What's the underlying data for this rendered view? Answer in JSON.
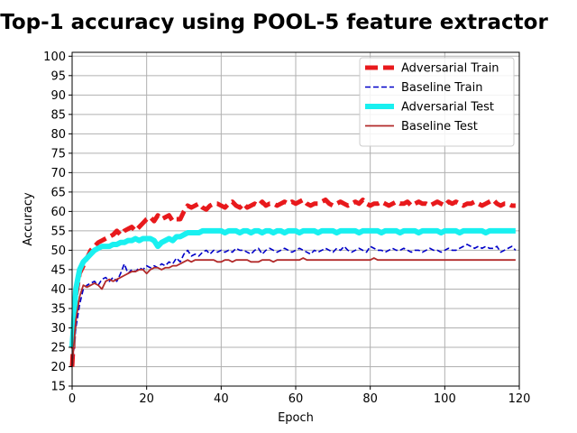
{
  "chart_data": {
    "type": "line",
    "title": "Top-1 accuracy using POOL-5 feature extractor",
    "xlabel": "Epoch",
    "ylabel": "Accuracy",
    "xlim": [
      0,
      120
    ],
    "ylim": [
      15,
      101
    ],
    "xticks": [
      0,
      20,
      40,
      60,
      80,
      100,
      120
    ],
    "yticks": [
      15,
      20,
      25,
      30,
      35,
      40,
      45,
      50,
      55,
      60,
      65,
      70,
      75,
      80,
      85,
      90,
      95,
      100
    ],
    "grid": true,
    "legend_position": "top-right",
    "series": [
      {
        "name": "Adversarial Train",
        "color": "#e8191c",
        "style": "thick-dashed",
        "x": [
          0,
          1,
          2,
          3,
          4,
          5,
          6,
          7,
          8,
          9,
          10,
          11,
          12,
          13,
          14,
          15,
          16,
          17,
          18,
          19,
          20,
          21,
          22,
          23,
          24,
          25,
          26,
          27,
          28,
          29,
          30,
          31,
          32,
          33,
          34,
          35,
          36,
          37,
          38,
          39,
          40,
          41,
          42,
          43,
          44,
          45,
          46,
          47,
          48,
          49,
          50,
          51,
          52,
          53,
          54,
          55,
          56,
          57,
          58,
          59,
          60,
          61,
          62,
          63,
          64,
          65,
          66,
          67,
          68,
          69,
          70,
          71,
          72,
          73,
          74,
          75,
          76,
          77,
          78,
          79,
          80,
          81,
          82,
          83,
          84,
          85,
          86,
          87,
          88,
          89,
          90,
          91,
          92,
          93,
          94,
          95,
          96,
          97,
          98,
          99,
          100,
          101,
          102,
          103,
          104,
          105,
          106,
          107,
          108,
          109,
          110,
          111,
          112,
          113,
          114,
          115,
          116,
          117,
          118,
          119
        ],
        "values": [
          20,
          38,
          44,
          46,
          48,
          50,
          51,
          52,
          52.5,
          53,
          53.5,
          54,
          55,
          54,
          55,
          55.5,
          56,
          55,
          56,
          57,
          58,
          58.5,
          57.5,
          59,
          58,
          58.5,
          59,
          57.5,
          58,
          58,
          60,
          61.5,
          61,
          61.5,
          62,
          61,
          60.5,
          61.5,
          62,
          62,
          61.5,
          61,
          62,
          62.5,
          61.5,
          61,
          62,
          61,
          61.5,
          62,
          61.5,
          62.5,
          61.5,
          62,
          62,
          61.5,
          62,
          62.5,
          62,
          62.5,
          62,
          62.5,
          63,
          62,
          61.5,
          62,
          62,
          62.5,
          63,
          62,
          61.5,
          62,
          62.5,
          62,
          61.5,
          62,
          62.5,
          62,
          63,
          62,
          61.5,
          62,
          62,
          62.5,
          62,
          61.5,
          62,
          62.5,
          62,
          62,
          62.5,
          61.5,
          62,
          62.5,
          62,
          62,
          61.5,
          62,
          62.5,
          62,
          61.5,
          62.5,
          62,
          62.5,
          62,
          61.5,
          62,
          62,
          62.5,
          62,
          61.5,
          62,
          62.5,
          63,
          62,
          61.5,
          62,
          62,
          61.5,
          61.5
        ]
      },
      {
        "name": "Baseline Train",
        "color": "#0000c8",
        "style": "dashed",
        "x": [
          0,
          1,
          2,
          3,
          4,
          5,
          6,
          7,
          8,
          9,
          10,
          11,
          12,
          13,
          14,
          15,
          16,
          17,
          18,
          19,
          20,
          21,
          22,
          23,
          24,
          25,
          26,
          27,
          28,
          29,
          30,
          31,
          32,
          33,
          34,
          35,
          36,
          37,
          38,
          39,
          40,
          41,
          42,
          43,
          44,
          45,
          46,
          47,
          48,
          49,
          50,
          51,
          52,
          53,
          54,
          55,
          56,
          57,
          58,
          59,
          60,
          61,
          62,
          63,
          64,
          65,
          66,
          67,
          68,
          69,
          70,
          71,
          72,
          73,
          74,
          75,
          76,
          77,
          78,
          79,
          80,
          81,
          82,
          83,
          84,
          85,
          86,
          87,
          88,
          89,
          90,
          91,
          92,
          93,
          94,
          95,
          96,
          97,
          98,
          99,
          100,
          101,
          102,
          103,
          104,
          105,
          106,
          107,
          108,
          109,
          110,
          111,
          112,
          113,
          114,
          115,
          116,
          117,
          118,
          119
        ],
        "values": [
          20,
          30,
          36,
          40,
          41,
          41.5,
          42,
          41,
          42.5,
          43,
          42,
          43,
          42,
          44,
          46.5,
          44,
          45,
          44.5,
          45.5,
          45,
          46,
          45.5,
          46,
          45.5,
          46.5,
          46,
          47,
          46.5,
          48,
          47,
          49,
          50,
          48.5,
          49,
          48.5,
          49.5,
          50,
          49,
          50,
          49.5,
          50,
          49.5,
          50,
          49.5,
          50.5,
          50,
          50,
          49.5,
          49,
          50,
          50.5,
          49,
          50,
          50.5,
          50,
          49.5,
          50,
          50.5,
          50,
          49.5,
          50,
          50.5,
          50,
          49.5,
          49,
          50,
          49.5,
          50,
          50.5,
          50,
          49.5,
          50.5,
          50,
          51,
          50,
          49.5,
          50,
          50.5,
          50,
          49.5,
          51,
          50.5,
          50,
          50,
          49.5,
          50,
          50.5,
          50,
          50,
          50.5,
          50,
          49.5,
          50,
          50,
          49.5,
          50,
          50.5,
          50,
          50,
          49.5,
          50,
          50.5,
          50,
          50,
          50.5,
          51,
          51.5,
          51,
          50.5,
          51,
          50.5,
          51,
          50.5,
          50.5,
          51,
          49.5,
          50,
          50.5,
          51,
          50
        ]
      },
      {
        "name": "Adversarial Test",
        "color": "#19f0f0",
        "style": "thick-solid",
        "x": [
          0,
          1,
          2,
          3,
          4,
          5,
          6,
          7,
          8,
          9,
          10,
          11,
          12,
          13,
          14,
          15,
          16,
          17,
          18,
          19,
          20,
          21,
          22,
          23,
          24,
          25,
          26,
          27,
          28,
          29,
          30,
          31,
          32,
          33,
          34,
          35,
          36,
          37,
          38,
          39,
          40,
          41,
          42,
          43,
          44,
          45,
          46,
          47,
          48,
          49,
          50,
          51,
          52,
          53,
          54,
          55,
          56,
          57,
          58,
          59,
          60,
          61,
          62,
          63,
          64,
          65,
          66,
          67,
          68,
          69,
          70,
          71,
          72,
          73,
          74,
          75,
          76,
          77,
          78,
          79,
          80,
          81,
          82,
          83,
          84,
          85,
          86,
          87,
          88,
          89,
          90,
          91,
          92,
          93,
          94,
          95,
          96,
          97,
          98,
          99,
          100,
          101,
          102,
          103,
          104,
          105,
          106,
          107,
          108,
          109,
          110,
          111,
          112,
          113,
          114,
          115,
          116,
          117,
          118,
          119
        ],
        "values": [
          25,
          40,
          45,
          47,
          48,
          49,
          50,
          50.5,
          51,
          51,
          51,
          51.5,
          51.5,
          52,
          52,
          52.5,
          52.5,
          53,
          52.5,
          53,
          53,
          53,
          52.5,
          51,
          52,
          52.5,
          53,
          52.5,
          53.5,
          53.5,
          54,
          54.5,
          54.5,
          54.5,
          54.5,
          55,
          55,
          55,
          55,
          55,
          55,
          54.5,
          55,
          55,
          55,
          54.5,
          55,
          55,
          54.5,
          55,
          55,
          54.5,
          55,
          55,
          54.5,
          55,
          55,
          54.5,
          55,
          55,
          55,
          54.5,
          55,
          55,
          55,
          55,
          54.5,
          55,
          55,
          55,
          55,
          54.5,
          55,
          55,
          55,
          55,
          55,
          54.5,
          55,
          55,
          55,
          55,
          55,
          54.5,
          55,
          55,
          55,
          55,
          54.5,
          55,
          55,
          55,
          55,
          54.5,
          55,
          55,
          55,
          55,
          55,
          54.5,
          55,
          55,
          55,
          55,
          54.5,
          55,
          55,
          55,
          55,
          55,
          55,
          54.5,
          55,
          55,
          55,
          55,
          55,
          55,
          55,
          55
        ]
      },
      {
        "name": "Baseline Test",
        "color": "#b22a2a",
        "style": "solid",
        "x": [
          0,
          1,
          2,
          3,
          4,
          5,
          6,
          7,
          8,
          9,
          10,
          11,
          12,
          13,
          14,
          15,
          16,
          17,
          18,
          19,
          20,
          21,
          22,
          23,
          24,
          25,
          26,
          27,
          28,
          29,
          30,
          31,
          32,
          33,
          34,
          35,
          36,
          37,
          38,
          39,
          40,
          41,
          42,
          43,
          44,
          45,
          46,
          47,
          48,
          49,
          50,
          51,
          52,
          53,
          54,
          55,
          56,
          57,
          58,
          59,
          60,
          61,
          62,
          63,
          64,
          65,
          66,
          67,
          68,
          69,
          70,
          71,
          72,
          73,
          74,
          75,
          76,
          77,
          78,
          79,
          80,
          81,
          82,
          83,
          84,
          85,
          86,
          87,
          88,
          89,
          90,
          91,
          92,
          93,
          94,
          95,
          96,
          97,
          98,
          99,
          100,
          101,
          102,
          103,
          104,
          105,
          106,
          107,
          108,
          109,
          110,
          111,
          112,
          113,
          114,
          115,
          116,
          117,
          118,
          119
        ],
        "values": [
          20,
          32,
          38,
          41,
          40.5,
          41,
          41.5,
          41,
          40,
          42,
          42.5,
          42,
          42.5,
          43,
          43.5,
          44,
          44.5,
          44.5,
          45,
          45,
          44,
          45,
          45.5,
          45.5,
          45,
          45.5,
          45.5,
          46,
          46,
          46.5,
          47,
          47.5,
          47,
          47.5,
          47.5,
          47.5,
          47.5,
          47.5,
          47.5,
          47,
          47,
          47.5,
          47.5,
          47,
          47.5,
          47.5,
          47.5,
          47.5,
          47,
          47,
          47,
          47.5,
          47.5,
          47.5,
          47,
          47.5,
          47.5,
          47.5,
          47.5,
          47.5,
          47.5,
          47.5,
          48,
          47.5,
          47.5,
          47.5,
          47.5,
          47.5,
          47.5,
          47.5,
          47.5,
          47.5,
          47.5,
          47.5,
          47.5,
          47.5,
          47.5,
          47.5,
          47.5,
          47.5,
          47.5,
          48,
          47.5,
          47.5,
          47.5,
          47.5,
          47.5,
          47.5,
          47.5,
          47.5,
          47.5,
          47.5,
          47.5,
          47.5,
          47.5,
          47.5,
          47.5,
          47.5,
          47.5,
          47.5,
          47.5,
          47.5,
          47.5,
          47.5,
          47.5,
          47.5,
          47.5,
          47.5,
          47.5,
          47.5,
          47.5,
          47.5,
          47.5,
          47.5,
          47.5,
          47.5,
          47.5,
          47.5,
          47.5,
          47.5
        ]
      }
    ]
  }
}
